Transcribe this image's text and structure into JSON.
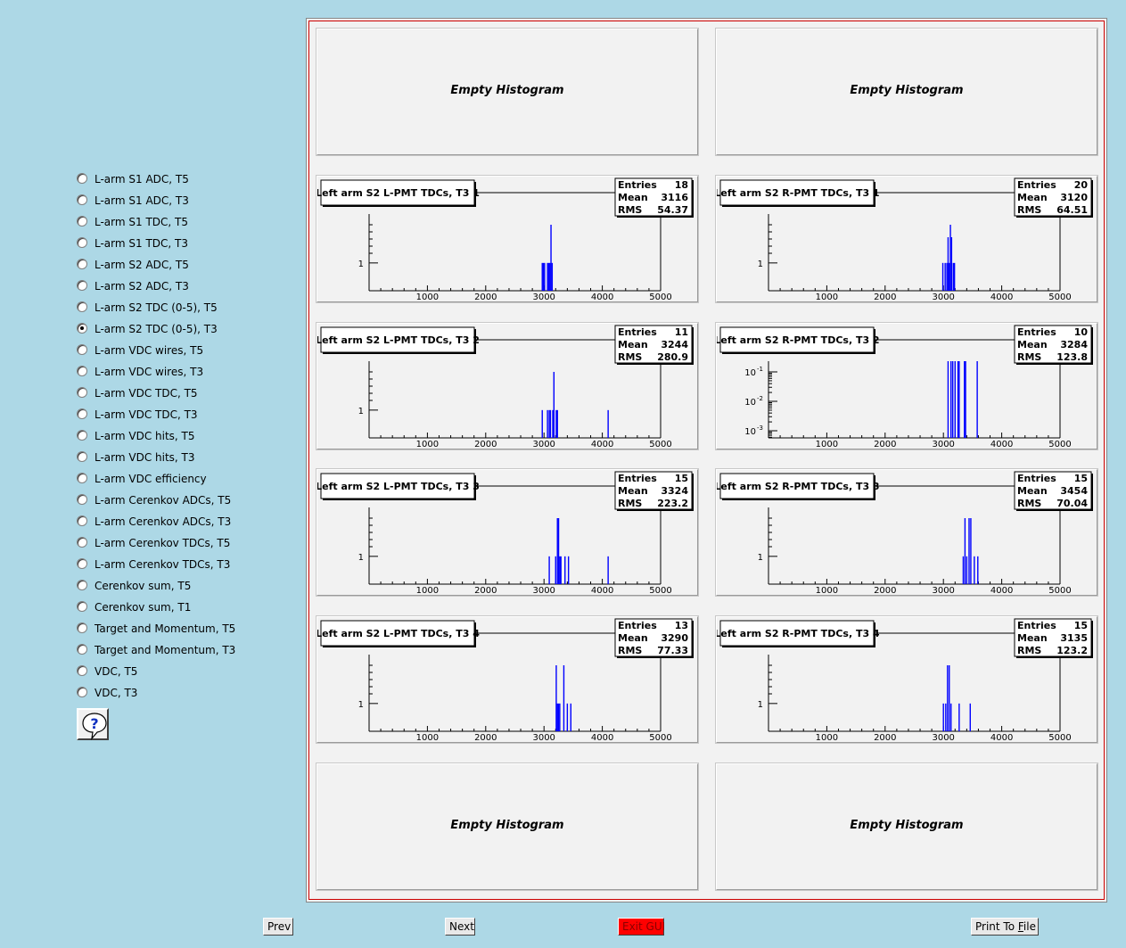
{
  "sidebar": {
    "options": [
      {
        "label": "L-arm S1 ADC, T5",
        "checked": false
      },
      {
        "label": "L-arm S1 ADC, T3",
        "checked": false
      },
      {
        "label": "L-arm S1 TDC, T5",
        "checked": false
      },
      {
        "label": "L-arm S1 TDC, T3",
        "checked": false
      },
      {
        "label": "L-arm S2 ADC, T5",
        "checked": false
      },
      {
        "label": "L-arm S2 ADC, T3",
        "checked": false
      },
      {
        "label": "L-arm S2 TDC (0-5), T5",
        "checked": false
      },
      {
        "label": "L-arm S2 TDC (0-5), T3",
        "checked": true
      },
      {
        "label": "L-arm VDC wires, T5",
        "checked": false
      },
      {
        "label": "L-arm VDC wires, T3",
        "checked": false
      },
      {
        "label": "L-arm VDC TDC, T5",
        "checked": false
      },
      {
        "label": "L-arm VDC TDC, T3",
        "checked": false
      },
      {
        "label": "L-arm VDC hits, T5",
        "checked": false
      },
      {
        "label": "L-arm VDC hits, T3",
        "checked": false
      },
      {
        "label": "L-arm VDC efficiency",
        "checked": false
      },
      {
        "label": "L-arm Cerenkov ADCs, T5",
        "checked": false
      },
      {
        "label": "L-arm Cerenkov ADCs, T3",
        "checked": false
      },
      {
        "label": "L-arm Cerenkov TDCs, T5",
        "checked": false
      },
      {
        "label": "L-arm Cerenkov TDCs, T3",
        "checked": false
      },
      {
        "label": "Cerenkov sum, T5",
        "checked": false
      },
      {
        "label": "Cerenkov sum, T1",
        "checked": false
      },
      {
        "label": "Target and Momentum, T5",
        "checked": false
      },
      {
        "label": "Target and Momentum, T3",
        "checked": false
      },
      {
        "label": "VDC, T5",
        "checked": false
      },
      {
        "label": "VDC, T3",
        "checked": false
      }
    ],
    "help_icon": "question-bubble-icon"
  },
  "canvas": {
    "empty_label": "Empty Histogram",
    "stats_labels": {
      "entries": "Entries",
      "mean": "Mean",
      "rms": "RMS"
    },
    "pads": [
      {
        "empty": true
      },
      {
        "empty": true
      },
      {
        "title": "Left arm S2 L-PMT TDCs, T3 1",
        "entries": "18",
        "mean": "3116",
        "rms": "54.37",
        "log_labels": false,
        "bars": [
          [
            2970,
            1
          ],
          [
            2990,
            1
          ],
          [
            3010,
            1
          ],
          [
            3060,
            1
          ],
          [
            3080,
            1
          ],
          [
            3100,
            1
          ],
          [
            3120,
            3
          ],
          [
            3140,
            1
          ]
        ]
      },
      {
        "title": "Left arm S2 R-PMT TDCs, T3 1",
        "entries": "20",
        "mean": "3120",
        "rms": "64.51",
        "log_labels": false,
        "bars": [
          [
            2990,
            1
          ],
          [
            3030,
            1
          ],
          [
            3060,
            1
          ],
          [
            3080,
            2
          ],
          [
            3100,
            1
          ],
          [
            3120,
            3
          ],
          [
            3140,
            2
          ],
          [
            3170,
            1
          ],
          [
            3190,
            1
          ]
        ]
      },
      {
        "title": "Left arm S2 L-PMT TDCs, T3 2",
        "entries": "11",
        "mean": "3244",
        "rms": "280.9",
        "log_labels": false,
        "bars": [
          [
            2970,
            1
          ],
          [
            3060,
            1
          ],
          [
            3090,
            1
          ],
          [
            3110,
            1
          ],
          [
            3150,
            1
          ],
          [
            3170,
            3
          ],
          [
            3210,
            1
          ],
          [
            3230,
            1
          ],
          [
            4100,
            1
          ]
        ]
      },
      {
        "title": "Left arm S2 R-PMT TDCs, T3 2",
        "entries": "10",
        "mean": "3284",
        "rms": "123.8",
        "log_labels": true,
        "bars": [
          [
            3080,
            1
          ],
          [
            3130,
            1
          ],
          [
            3160,
            1
          ],
          [
            3200,
            1
          ],
          [
            3250,
            1
          ],
          [
            3270,
            1
          ],
          [
            3360,
            1
          ],
          [
            3380,
            1
          ],
          [
            3580,
            1
          ]
        ]
      },
      {
        "title": "Left arm S2 L-PMT TDCs, T3 3",
        "entries": "15",
        "mean": "3324",
        "rms": "223.2",
        "log_labels": false,
        "bars": [
          [
            3090,
            1
          ],
          [
            3200,
            1
          ],
          [
            3230,
            2
          ],
          [
            3250,
            2
          ],
          [
            3270,
            1
          ],
          [
            3290,
            1
          ],
          [
            3360,
            1
          ],
          [
            3420,
            1
          ],
          [
            4100,
            1
          ]
        ]
      },
      {
        "title": "Left arm S2 R-PMT TDCs, T3 3",
        "entries": "15",
        "mean": "3454",
        "rms": "70.04",
        "log_labels": false,
        "bars": [
          [
            3340,
            1
          ],
          [
            3370,
            2
          ],
          [
            3400,
            1
          ],
          [
            3440,
            2
          ],
          [
            3470,
            2
          ],
          [
            3530,
            1
          ],
          [
            3590,
            1
          ]
        ]
      },
      {
        "title": "Left arm S2 L-PMT TDCs, T3 4",
        "entries": "13",
        "mean": "3290",
        "rms": "77.33",
        "log_labels": false,
        "bars": [
          [
            3210,
            2
          ],
          [
            3230,
            1
          ],
          [
            3250,
            1
          ],
          [
            3270,
            1
          ],
          [
            3340,
            2
          ],
          [
            3400,
            1
          ],
          [
            3460,
            1
          ]
        ]
      },
      {
        "title": "Left arm S2 R-PMT TDCs, T3 4",
        "entries": "15",
        "mean": "3135",
        "rms": "123.2",
        "log_labels": false,
        "bars": [
          [
            3000,
            1
          ],
          [
            3040,
            1
          ],
          [
            3070,
            2
          ],
          [
            3100,
            2
          ],
          [
            3130,
            1
          ],
          [
            3270,
            1
          ],
          [
            3460,
            1
          ]
        ]
      },
      {
        "empty": true
      },
      {
        "empty": true
      }
    ],
    "axis": {
      "xmin": 0,
      "xmax": 5000,
      "x_ticks": [
        "1000",
        "2000",
        "3000",
        "4000",
        "5000"
      ],
      "y_tick": "1",
      "log_ticks": [
        "10",
        "10",
        "10"
      ],
      "log_exps": [
        "-1",
        "-2",
        "-3"
      ]
    },
    "bar_color": "#0000ff"
  },
  "buttons": {
    "prev": "Prev",
    "next": "Next",
    "exit": "Exit GUI",
    "print_pre": "Print To ",
    "print_ul": "F",
    "print_post": "ile"
  }
}
